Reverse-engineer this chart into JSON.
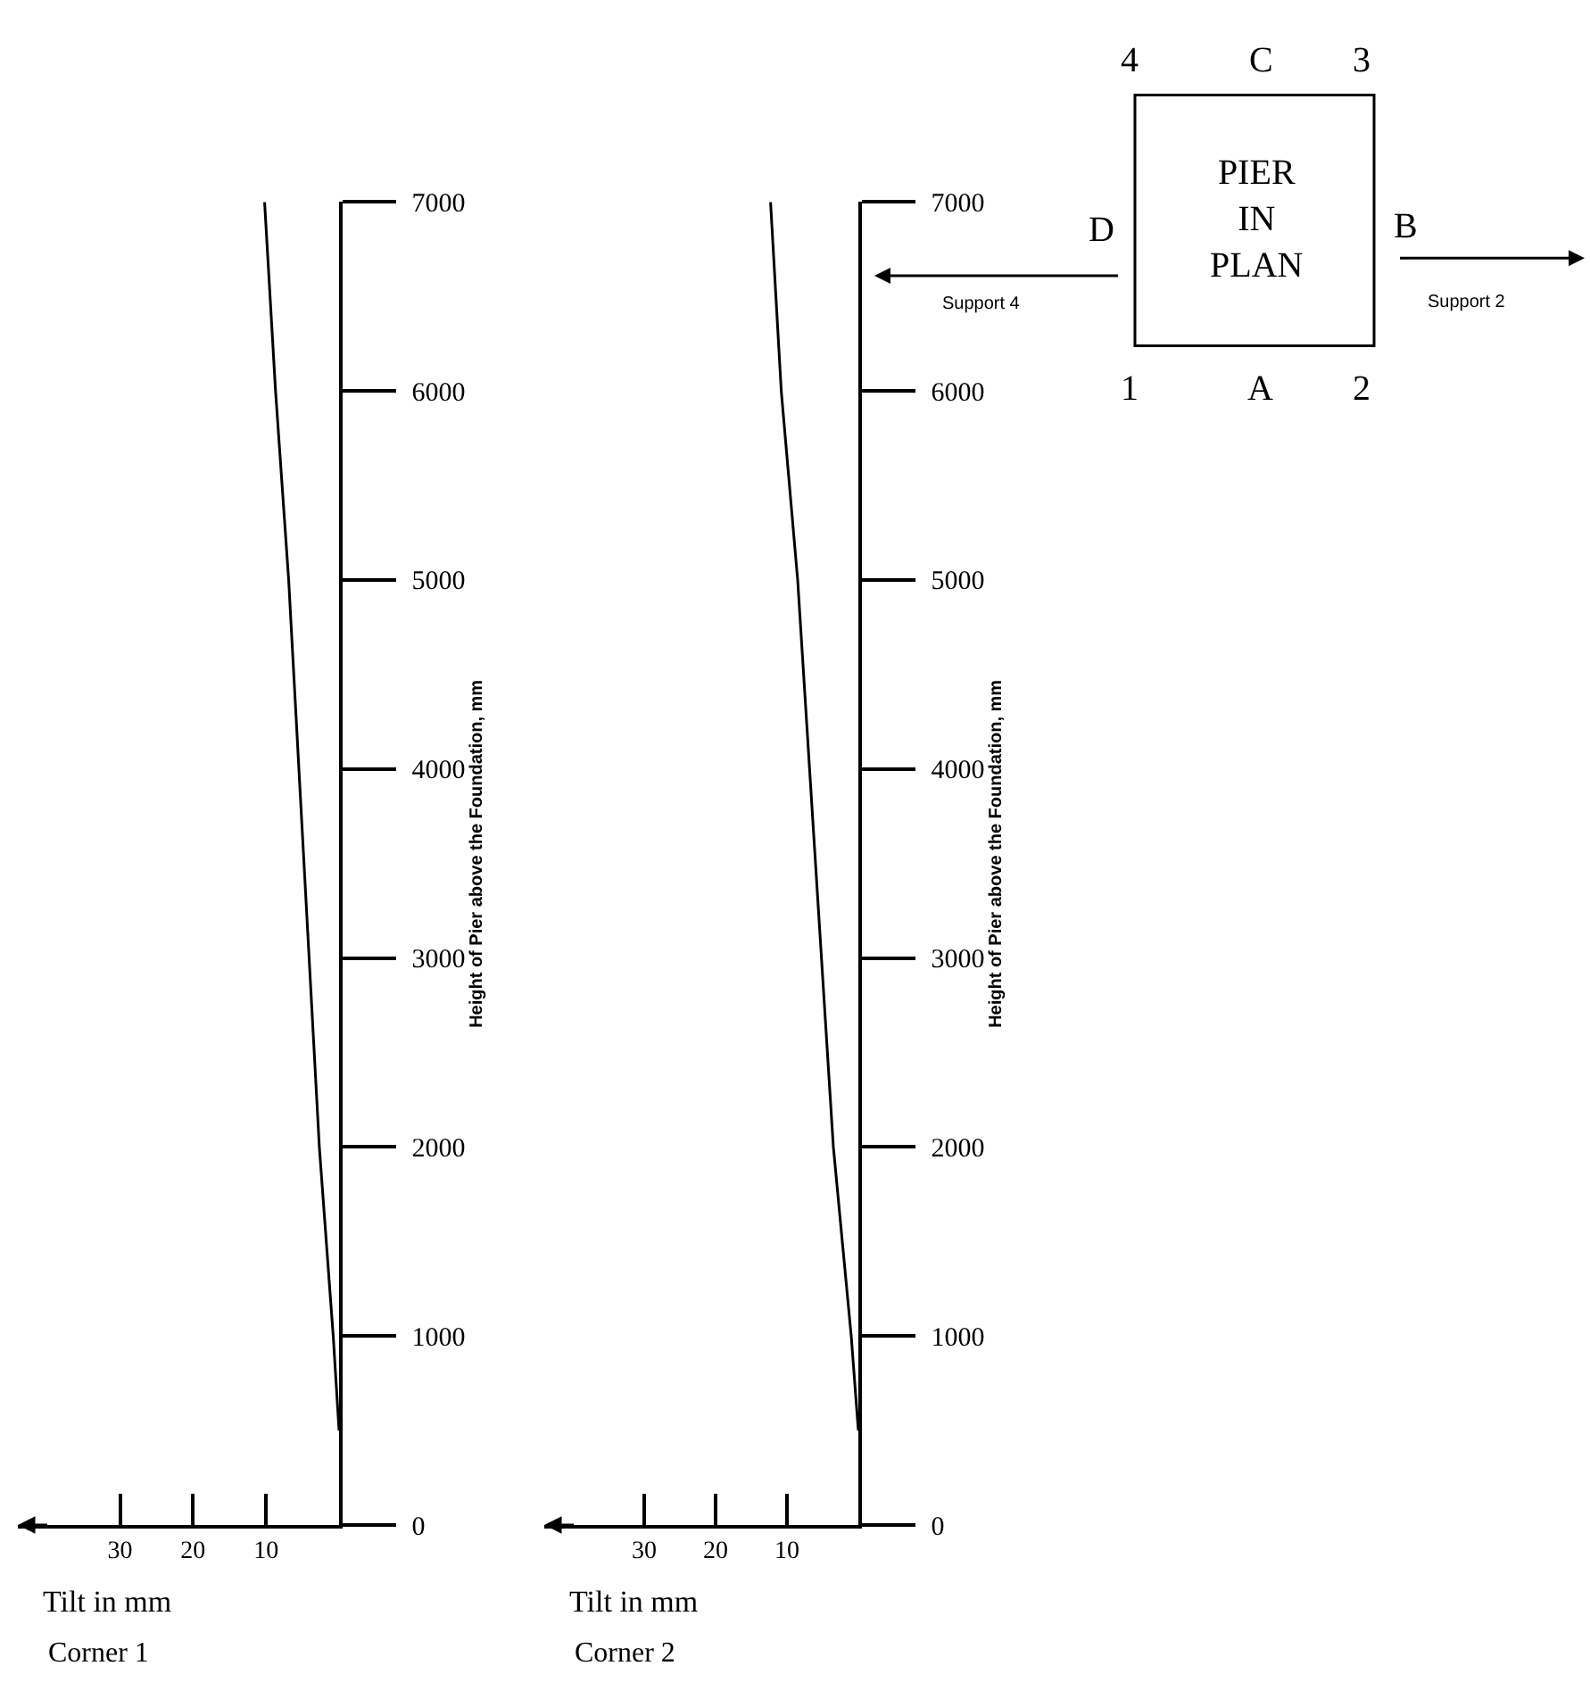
{
  "chart_data": [
    {
      "type": "line",
      "title": "Corner 1",
      "xlabel": "Tilt in mm",
      "ylabel": "Height of Pier above the Foundation, mm",
      "xlim": [
        44,
        0
      ],
      "xticks": [
        10,
        20,
        30
      ],
      "ylim": [
        0,
        7000
      ],
      "yticks": [
        0,
        1000,
        2000,
        3000,
        4000,
        5000,
        6000,
        7000
      ],
      "grid": false,
      "marker": "none",
      "line_style": "solid",
      "series": [
        {
          "color": "#000000",
          "x": [
            0,
            0.8,
            2.7,
            6.9,
            8.7,
            10.2
          ],
          "values": [
            500,
            1000,
            2000,
            5000,
            6000,
            7000
          ]
        }
      ]
    },
    {
      "type": "line",
      "title": "Corner 2",
      "xlabel": "Tilt in mm",
      "ylabel": "Height of Pier above the Foundation, mm",
      "xlim": [
        44,
        0
      ],
      "xticks": [
        10,
        20,
        30
      ],
      "ylim": [
        0,
        7000
      ],
      "yticks": [
        0,
        1000,
        2000,
        3000,
        4000,
        5000,
        6000,
        7000
      ],
      "grid": false,
      "marker": "none",
      "line_style": "solid",
      "series": [
        {
          "color": "#000000",
          "x": [
            0,
            1.0,
            3.5,
            8.5,
            10.8,
            12.3
          ],
          "values": [
            500,
            1000,
            2000,
            5000,
            6000,
            7000
          ]
        }
      ]
    },
    {
      "type": "other",
      "annotations": [
        "4",
        "C",
        "3",
        "D",
        "B",
        "1",
        "A",
        "2",
        "PIER\nIN\nPLAN",
        "Support 4",
        "Support 2"
      ]
    }
  ]
}
